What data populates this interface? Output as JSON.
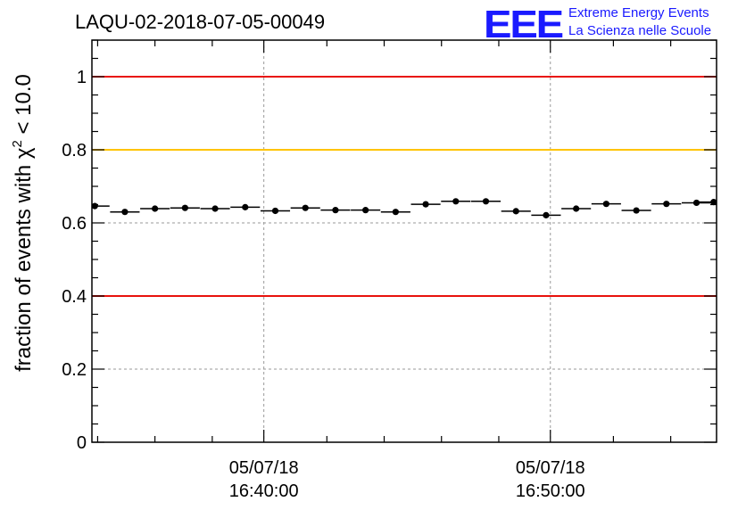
{
  "chart_data": {
    "type": "scatter",
    "title": "LAQU-02-2018-07-05-00049",
    "ylabel_main": "fraction of events with ",
    "ylabel_chi": "χ",
    "ylabel_sup": "2",
    "ylabel_tail": " < 10.0",
    "ylim": [
      0,
      1.1
    ],
    "yticks": [
      0,
      0.2,
      0.4,
      0.6,
      0.8,
      1
    ],
    "ytick_labels": [
      "0",
      "0.2",
      "0.4",
      "0.6",
      "0.8",
      "1"
    ],
    "xlim_minutes": [
      34.0,
      55.8
    ],
    "xticks_major_minutes": [
      40,
      50
    ],
    "xtick_labels": [
      {
        "date": "05/07/18",
        "time": "16:40:00"
      },
      {
        "date": "05/07/18",
        "time": "16:50:00"
      }
    ],
    "xticks_minor_minutes": [
      34.2,
      36.2,
      38.2,
      42.2,
      44.2,
      46.2,
      48.2,
      52.2,
      54.2
    ],
    "reference_lines": [
      {
        "value": 1.0,
        "color": "#e8120c"
      },
      {
        "value": 0.8,
        "color": "#ffc400"
      },
      {
        "value": 0.4,
        "color": "#e8120c"
      }
    ],
    "bin_width_minutes": 1.03,
    "points": {
      "x_minutes": [
        34.1,
        35.15,
        36.2,
        37.25,
        38.3,
        39.35,
        40.4,
        41.45,
        42.5,
        43.55,
        44.6,
        45.65,
        46.7,
        47.75,
        48.8,
        49.85,
        50.9,
        51.95,
        53.0,
        54.05,
        55.1,
        55.7
      ],
      "y": [
        0.646,
        0.63,
        0.639,
        0.641,
        0.639,
        0.643,
        0.633,
        0.641,
        0.635,
        0.635,
        0.63,
        0.651,
        0.659,
        0.659,
        0.632,
        0.621,
        0.639,
        0.652,
        0.634,
        0.652,
        0.655,
        0.657
      ]
    },
    "error_bar": 0.005
  },
  "logo": {
    "mark": "EEE",
    "line1": "Extreme Energy Events",
    "line2": "La Scienza nelle Scuole"
  },
  "colors": {
    "logo": "#1a1aff",
    "grid": "#9a9a9a",
    "marker": "#000000"
  }
}
